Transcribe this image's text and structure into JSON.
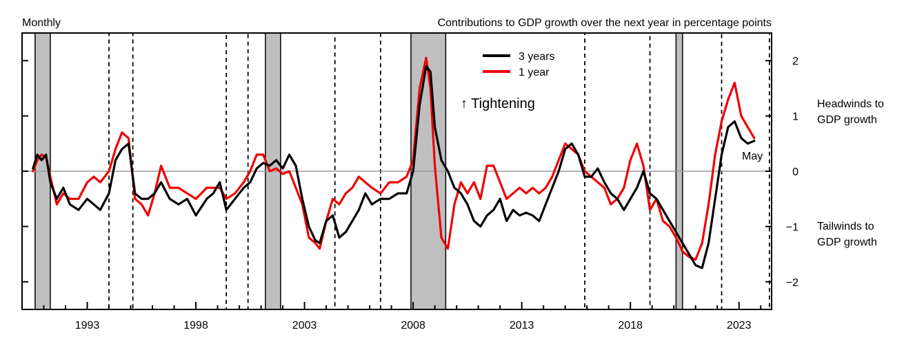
{
  "chart_data": {
    "type": "line",
    "title": "Contributions to GDP growth over the next year in percentage points",
    "frequency_label": "Monthly",
    "ylim": [
      -2.5,
      2.5
    ],
    "yticks": [
      -2,
      -1,
      0,
      1,
      2
    ],
    "ytick_labels": [
      "−2",
      "−1",
      "0",
      "1",
      "2"
    ],
    "xlim": [
      1990.0,
      2024.5
    ],
    "xticks": [
      1993,
      1998,
      2003,
      2008,
      2013,
      2018,
      2023
    ],
    "xtick_labels": [
      "1993",
      "1998",
      "2003",
      "2008",
      "2013",
      "2018",
      "2023"
    ],
    "zero_line": true,
    "legend": {
      "position": "top-center"
    },
    "annotations": {
      "tightening": "↑ Tightening",
      "headwinds": [
        "Headwinds to",
        "GDP growth"
      ],
      "tailwinds": [
        "Tailwinds to",
        "GDP growth"
      ],
      "last_point": "May"
    },
    "recessions": [
      [
        1990.6,
        1991.3
      ],
      [
        2001.2,
        2001.9
      ],
      [
        2007.9,
        2009.5
      ],
      [
        2020.1,
        2020.4
      ]
    ],
    "tightening_periods": [
      [
        1994.0,
        1995.1
      ],
      [
        1999.4,
        2000.4
      ],
      [
        2004.4,
        2006.5
      ],
      [
        2015.9,
        2018.9
      ],
      [
        2022.2,
        2024.4
      ]
    ],
    "series": [
      {
        "name": "3 years",
        "color": "#000000",
        "x": [
          1990.5,
          1990.7,
          1990.9,
          1991.1,
          1991.3,
          1991.6,
          1991.9,
          1992.2,
          1992.6,
          1993.0,
          1993.3,
          1993.6,
          1994.0,
          1994.3,
          1994.6,
          1994.9,
          1995.2,
          1995.5,
          1995.8,
          1996.1,
          1996.4,
          1996.8,
          1997.2,
          1997.6,
          1998.0,
          1998.5,
          1998.8,
          1999.1,
          1999.4,
          1999.8,
          2000.2,
          2000.5,
          2000.8,
          2001.1,
          2001.4,
          2001.7,
          2002.0,
          2002.3,
          2002.6,
          2002.9,
          2003.2,
          2003.5,
          2003.7,
          2004.0,
          2004.3,
          2004.6,
          2004.9,
          2005.2,
          2005.5,
          2005.8,
          2006.1,
          2006.5,
          2006.9,
          2007.3,
          2007.7,
          2008.0,
          2008.3,
          2008.6,
          2008.8,
          2009.0,
          2009.3,
          2009.6,
          2009.9,
          2010.2,
          2010.5,
          2010.8,
          2011.1,
          2011.4,
          2011.7,
          2012.0,
          2012.3,
          2012.6,
          2012.9,
          2013.2,
          2013.5,
          2013.8,
          2014.1,
          2014.4,
          2014.7,
          2015.0,
          2015.3,
          2015.6,
          2015.9,
          2016.2,
          2016.5,
          2016.8,
          2017.1,
          2017.4,
          2017.7,
          2018.0,
          2018.3,
          2018.6,
          2018.9,
          2019.2,
          2019.5,
          2019.8,
          2020.1,
          2020.4,
          2020.7,
          2021.0,
          2021.3,
          2021.6,
          2021.9,
          2022.2,
          2022.5,
          2022.8,
          2023.1,
          2023.4,
          2023.7
        ],
        "values": [
          0.05,
          0.3,
          0.2,
          0.3,
          -0.2,
          -0.5,
          -0.3,
          -0.6,
          -0.7,
          -0.5,
          -0.6,
          -0.7,
          -0.4,
          0.2,
          0.4,
          0.5,
          -0.4,
          -0.5,
          -0.5,
          -0.4,
          -0.2,
          -0.5,
          -0.6,
          -0.5,
          -0.8,
          -0.5,
          -0.4,
          -0.2,
          -0.7,
          -0.5,
          -0.3,
          -0.2,
          0.05,
          0.15,
          0.1,
          0.2,
          0.05,
          0.3,
          0.1,
          -0.5,
          -1.0,
          -1.25,
          -1.3,
          -0.9,
          -0.8,
          -1.2,
          -1.1,
          -0.9,
          -0.7,
          -0.4,
          -0.6,
          -0.5,
          -0.5,
          -0.4,
          -0.4,
          0.0,
          1.2,
          1.9,
          1.8,
          0.8,
          0.2,
          0.0,
          -0.3,
          -0.4,
          -0.6,
          -0.9,
          -1.0,
          -0.8,
          -0.7,
          -0.5,
          -0.9,
          -0.7,
          -0.8,
          -0.75,
          -0.8,
          -0.9,
          -0.6,
          -0.3,
          0.0,
          0.4,
          0.5,
          0.3,
          -0.1,
          -0.1,
          0.05,
          -0.2,
          -0.4,
          -0.5,
          -0.7,
          -0.5,
          -0.3,
          0.0,
          -0.4,
          -0.5,
          -0.7,
          -0.9,
          -1.1,
          -1.3,
          -1.5,
          -1.7,
          -1.75,
          -1.3,
          -0.5,
          0.3,
          0.8,
          0.9,
          0.6,
          0.5,
          0.55
        ]
      },
      {
        "name": "1 year",
        "color": "#ee0000",
        "x": [
          1990.5,
          1990.7,
          1990.9,
          1991.1,
          1991.3,
          1991.6,
          1991.9,
          1992.2,
          1992.6,
          1993.0,
          1993.3,
          1993.6,
          1994.0,
          1994.3,
          1994.6,
          1994.9,
          1995.2,
          1995.5,
          1995.8,
          1996.1,
          1996.4,
          1996.8,
          1997.2,
          1997.6,
          1998.0,
          1998.5,
          1998.8,
          1999.1,
          1999.4,
          1999.8,
          2000.2,
          2000.5,
          2000.8,
          2001.1,
          2001.4,
          2001.7,
          2002.0,
          2002.3,
          2002.6,
          2002.9,
          2003.2,
          2003.5,
          2003.7,
          2004.0,
          2004.3,
          2004.6,
          2004.9,
          2005.2,
          2005.5,
          2005.8,
          2006.1,
          2006.5,
          2006.9,
          2007.3,
          2007.7,
          2008.0,
          2008.3,
          2008.6,
          2008.8,
          2009.0,
          2009.3,
          2009.6,
          2009.9,
          2010.2,
          2010.5,
          2010.8,
          2011.1,
          2011.4,
          2011.7,
          2012.0,
          2012.3,
          2012.6,
          2012.9,
          2013.2,
          2013.5,
          2013.8,
          2014.1,
          2014.4,
          2014.7,
          2015.0,
          2015.3,
          2015.6,
          2015.9,
          2016.2,
          2016.5,
          2016.8,
          2017.1,
          2017.4,
          2017.7,
          2018.0,
          2018.3,
          2018.6,
          2018.9,
          2019.2,
          2019.5,
          2019.8,
          2020.1,
          2020.4,
          2020.7,
          2021.0,
          2021.3,
          2021.6,
          2021.9,
          2022.2,
          2022.5,
          2022.8,
          2023.1,
          2023.4,
          2023.7
        ],
        "values": [
          0.0,
          0.2,
          0.3,
          0.25,
          -0.1,
          -0.6,
          -0.4,
          -0.5,
          -0.5,
          -0.2,
          -0.1,
          -0.2,
          0.0,
          0.4,
          0.7,
          0.6,
          -0.5,
          -0.6,
          -0.8,
          -0.4,
          0.1,
          -0.3,
          -0.3,
          -0.4,
          -0.5,
          -0.3,
          -0.3,
          -0.3,
          -0.5,
          -0.4,
          -0.2,
          0.0,
          0.3,
          0.3,
          0.0,
          0.05,
          -0.05,
          0.0,
          -0.3,
          -0.6,
          -1.2,
          -1.3,
          -1.4,
          -0.9,
          -0.5,
          -0.6,
          -0.4,
          -0.3,
          -0.1,
          -0.2,
          -0.3,
          -0.4,
          -0.2,
          -0.2,
          -0.1,
          0.2,
          1.5,
          2.05,
          1.5,
          0.1,
          -1.2,
          -1.4,
          -0.6,
          -0.2,
          -0.4,
          -0.2,
          -0.5,
          0.1,
          0.1,
          -0.2,
          -0.5,
          -0.4,
          -0.3,
          -0.4,
          -0.3,
          -0.4,
          -0.3,
          -0.1,
          0.2,
          0.5,
          0.4,
          0.3,
          0.0,
          -0.1,
          -0.2,
          -0.3,
          -0.6,
          -0.5,
          -0.3,
          0.2,
          0.5,
          0.1,
          -0.7,
          -0.5,
          -0.9,
          -1.0,
          -1.2,
          -1.45,
          -1.55,
          -1.6,
          -1.3,
          -0.6,
          0.3,
          0.9,
          1.3,
          1.6,
          1.0,
          0.8,
          0.6
        ]
      }
    ]
  }
}
